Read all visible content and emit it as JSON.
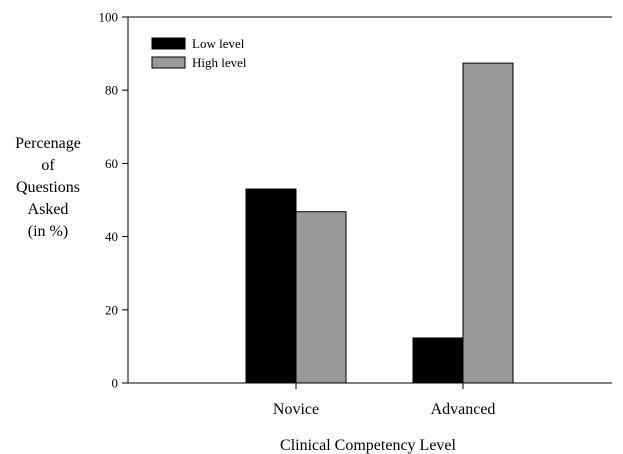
{
  "chart_data": {
    "type": "bar",
    "categories": [
      "Novice",
      "Advanced"
    ],
    "series": [
      {
        "name": "Low level",
        "values": [
          53,
          12.3
        ],
        "color": "#000000"
      },
      {
        "name": "High level",
        "values": [
          46.8,
          87.4
        ],
        "color": "#999999"
      }
    ],
    "xlabel": "Clinical Competency Level",
    "ylabel": [
      "Percenage",
      "of",
      "Questions",
      "Asked",
      "(in %)"
    ],
    "ylim": [
      0,
      100
    ],
    "yticks": [
      0,
      20,
      40,
      60,
      80,
      100
    ],
    "grid": false,
    "legend_position": "top-left"
  }
}
